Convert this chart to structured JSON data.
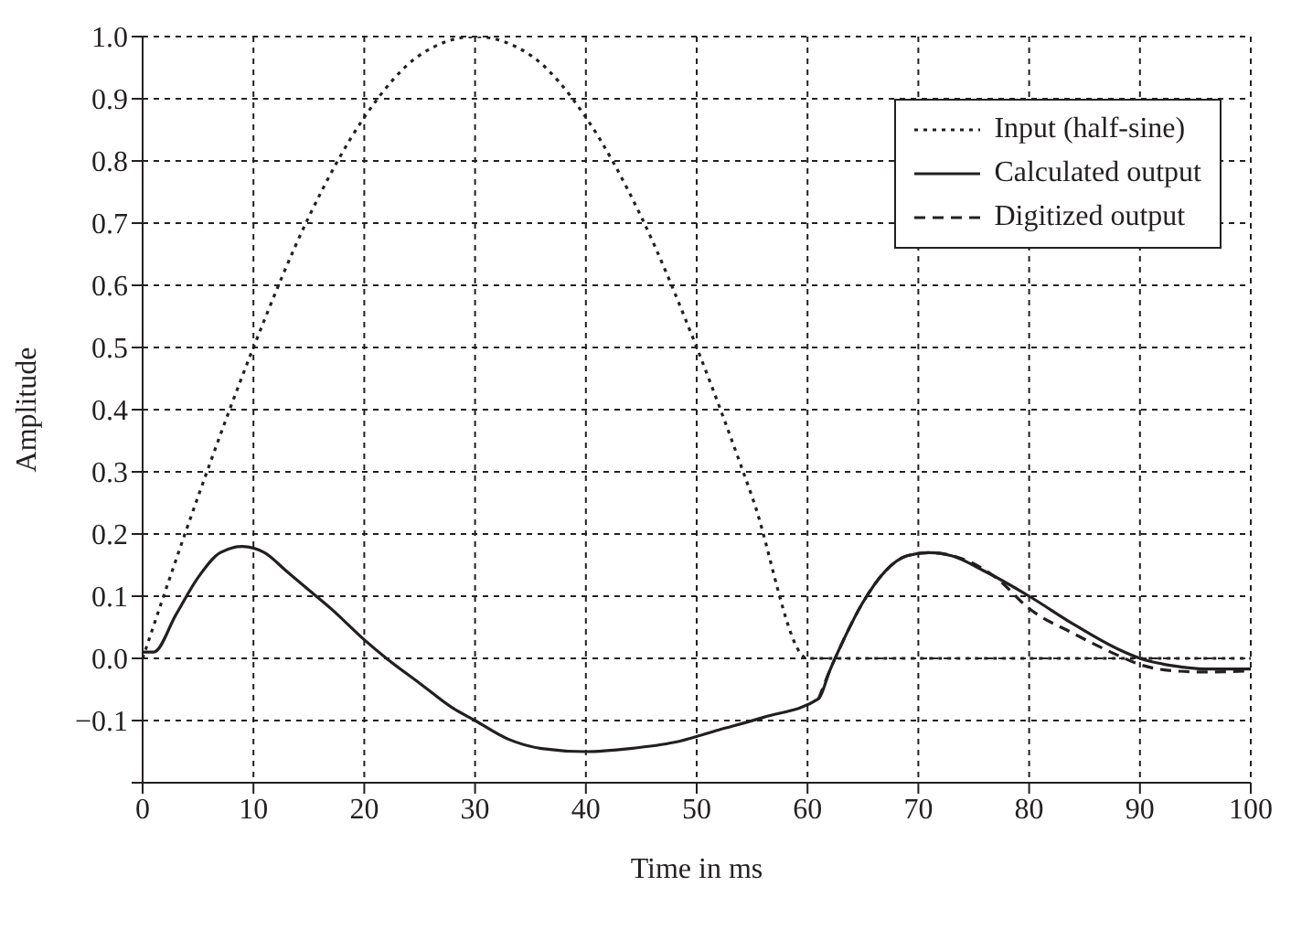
{
  "chart_data": {
    "type": "line",
    "xlabel": "Time in ms",
    "ylabel": "Amplitude",
    "xlim": [
      0,
      100
    ],
    "xticks": [
      0,
      10,
      20,
      30,
      40,
      50,
      60,
      70,
      80,
      90,
      100
    ],
    "ylim": [
      -0.2,
      1.0
    ],
    "yticks": [
      {
        "value": -0.2,
        "label": null
      },
      {
        "value": -0.1,
        "label": "−0.1"
      },
      {
        "value": 0,
        "label": "0.0"
      },
      0.1,
      0.2,
      0.3,
      0.4,
      0.5,
      0.6,
      0.7,
      0.8,
      0.9,
      {
        "value": 1,
        "label": "1.0"
      }
    ],
    "grid": true,
    "legend": "top right",
    "marker": "none",
    "series": [
      {
        "name": "Input (half-sine)",
        "color": "#231f20",
        "line_style": "dotted",
        "x": [
          0,
          5,
          10,
          15,
          20,
          25,
          30,
          35,
          40,
          45,
          50,
          55,
          60,
          100
        ],
        "values": [
          0,
          0.26,
          0.5,
          0.71,
          0.87,
          0.97,
          1.0,
          0.97,
          0.87,
          0.71,
          0.5,
          0.26,
          0,
          0
        ]
      },
      {
        "name": "Calculated output",
        "color": "#231f20",
        "line_style": "solid",
        "x": [
          0,
          1,
          3,
          5,
          7,
          9,
          11,
          13,
          15,
          17,
          20,
          22,
          25,
          28,
          30,
          33,
          36,
          40,
          44,
          48,
          52,
          56,
          61,
          62,
          63,
          65,
          67,
          69,
          71,
          73,
          76,
          80,
          84,
          88,
          90,
          93,
          96,
          100
        ],
        "values": [
          0.01,
          0.01,
          0.07,
          0.13,
          0.17,
          0.18,
          0.17,
          0.14,
          0.11,
          0.08,
          0.03,
          0.0,
          -0.04,
          -0.08,
          -0.1,
          -0.13,
          -0.145,
          -0.15,
          -0.145,
          -0.135,
          -0.115,
          -0.095,
          -0.065,
          -0.02,
          0.02,
          0.09,
          0.14,
          0.165,
          0.17,
          0.165,
          0.14,
          0.1,
          0.055,
          0.015,
          0.0,
          -0.012,
          -0.017,
          -0.017
        ]
      },
      {
        "name": "Digitized output",
        "color": "#231f20",
        "line_style": "dashed",
        "x": [
          61,
          62,
          63,
          65,
          67,
          69,
          71,
          74,
          77,
          80,
          84,
          88,
          90,
          93,
          96,
          100
        ],
        "values": [
          -0.065,
          -0.02,
          0.02,
          0.09,
          0.14,
          0.165,
          0.17,
          0.16,
          0.13,
          0.08,
          0.04,
          0.005,
          -0.01,
          -0.02,
          -0.022,
          -0.02
        ]
      }
    ]
  }
}
